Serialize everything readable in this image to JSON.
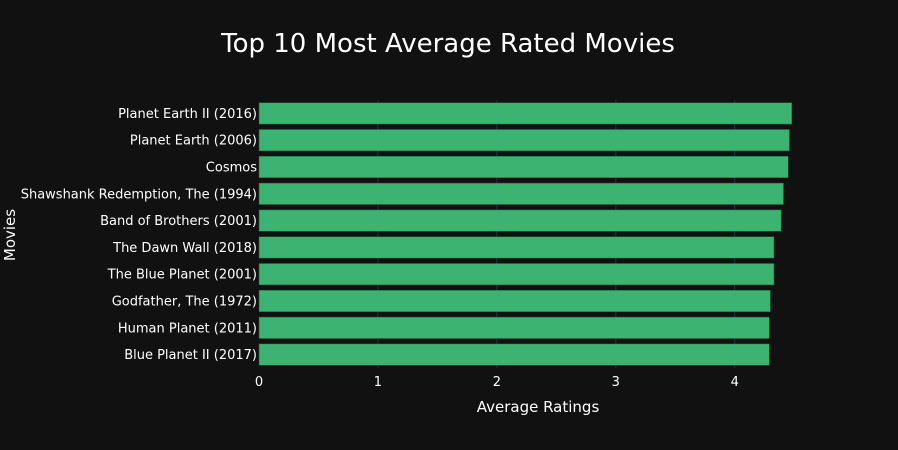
{
  "chart_data": {
    "type": "bar",
    "orientation": "horizontal",
    "title": "Top 10 Most Average Rated Movies",
    "xlabel": "Average Ratings",
    "ylabel": "Movies",
    "categories": [
      "Planet Earth II (2016)",
      "Planet Earth (2006)",
      "Cosmos",
      "Shawshank Redemption, The (1994)",
      "Band of Brothers (2001)",
      "The Dawn Wall (2018)",
      "The Blue Planet (2001)",
      "Godfather, The (1972)",
      "Human Planet (2011)",
      "Blue Planet II (2017)"
    ],
    "values": [
      4.48,
      4.46,
      4.45,
      4.41,
      4.39,
      4.33,
      4.33,
      4.3,
      4.29,
      4.29
    ],
    "xlim": [
      0,
      4.7
    ],
    "xticks": [
      0,
      1,
      2,
      3,
      4
    ],
    "grid": true,
    "bar_color": "#3cb371",
    "background": "#111111"
  }
}
